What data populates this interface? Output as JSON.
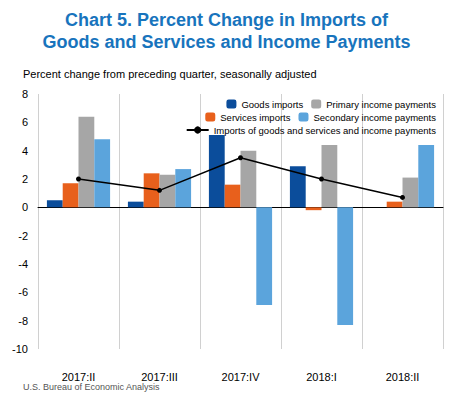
{
  "chart_data": {
    "type": "bar",
    "title": "Chart 5. Percent Change in Imports of\nGoods and Services and Income Payments",
    "subtitle": "Percent change from preceding quarter, seasonally adjusted",
    "source": "U.S. Bureau of Economic Analysis",
    "categories": [
      "2017:II",
      "2017:III",
      "2017:IV",
      "2018:I",
      "2018:II"
    ],
    "series": [
      {
        "name": "Goods imports",
        "type": "bar",
        "color": "#0b4d9b",
        "values": [
          0.5,
          0.4,
          5.1,
          2.9,
          0.0
        ]
      },
      {
        "name": "Services imports",
        "type": "bar",
        "color": "#e8601c",
        "values": [
          1.7,
          2.4,
          1.6,
          -0.2,
          0.4
        ]
      },
      {
        "name": "Primary income payments",
        "type": "bar",
        "color": "#a6a6a6",
        "values": [
          6.4,
          2.3,
          4.0,
          4.4,
          2.1
        ]
      },
      {
        "name": "Secondary income payments",
        "type": "bar",
        "color": "#5ba4dc",
        "values": [
          4.8,
          2.7,
          -6.9,
          -8.3,
          4.4
        ]
      },
      {
        "name": "Imports of goods and services and income payments",
        "type": "line",
        "color": "#000000",
        "marker": "circle",
        "line_style": "solid",
        "values": [
          2.0,
          1.2,
          3.5,
          2.0,
          0.7
        ]
      }
    ],
    "ylim": [
      -10,
      8
    ],
    "yticks": [
      -10,
      -8,
      -6,
      -4,
      -2,
      0,
      2,
      4,
      6,
      8
    ],
    "grid": true,
    "legend": "upper-right"
  }
}
